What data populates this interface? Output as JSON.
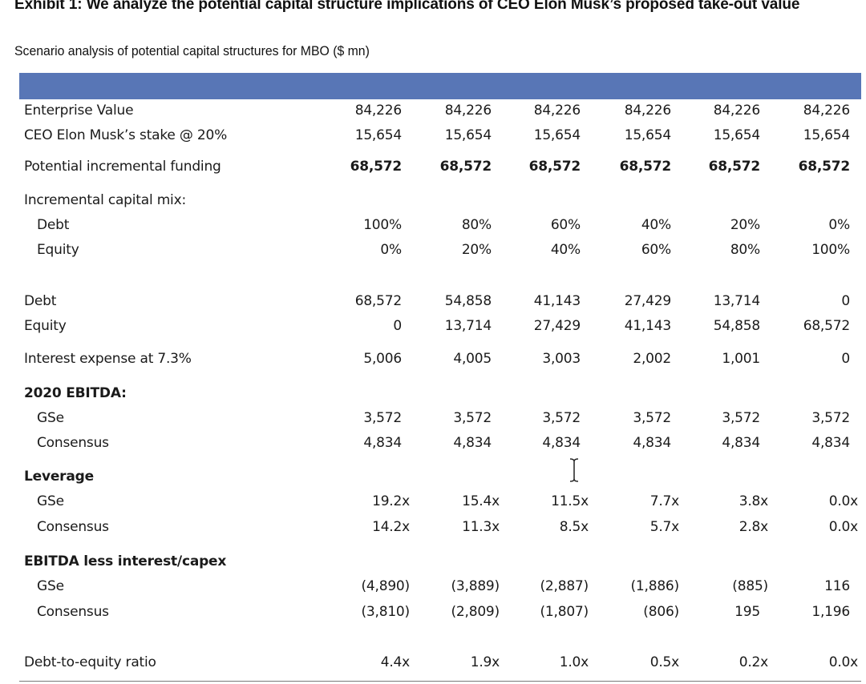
{
  "title": "Exhibit 1: We analyze the potential capital structure implications of CEO Elon Musk’s proposed take-out value",
  "subtitle": "Scenario analysis of potential capital structures for MBO ($ mn)",
  "rows": {
    "enterprise_value": {
      "label": "Enterprise Value",
      "values": [
        "84,226",
        "84,226",
        "84,226",
        "84,226",
        "84,226",
        "84,226"
      ]
    },
    "musk_stake": {
      "label": "CEO Elon Musk’s stake @ 20%",
      "values": [
        "15,654",
        "15,654",
        "15,654",
        "15,654",
        "15,654",
        "15,654"
      ]
    },
    "incremental_funding": {
      "label": "Potential incremental funding",
      "values": [
        "68,572",
        "68,572",
        "68,572",
        "68,572",
        "68,572",
        "68,572"
      ]
    },
    "capital_mix_header": {
      "label": "Incremental capital mix:"
    },
    "mix_debt": {
      "label": "Debt",
      "values": [
        "100%",
        "80%",
        "60%",
        "40%",
        "20%",
        "0%"
      ]
    },
    "mix_equity": {
      "label": "Equity",
      "values": [
        "0%",
        "20%",
        "40%",
        "60%",
        "80%",
        "100%"
      ]
    },
    "debt": {
      "label": "Debt",
      "values": [
        "68,572",
        "54,858",
        "41,143",
        "27,429",
        "13,714",
        "0"
      ]
    },
    "equity": {
      "label": "Equity",
      "values": [
        "0",
        "13,714",
        "27,429",
        "41,143",
        "54,858",
        "68,572"
      ]
    },
    "interest_expense": {
      "label": "Interest expense at 7.3%",
      "values": [
        "5,006",
        "4,005",
        "3,003",
        "2,002",
        "1,001",
        "0"
      ]
    },
    "ebitda_header": {
      "label": "2020 EBITDA:"
    },
    "ebitda_gse": {
      "label": "GSe",
      "values": [
        "3,572",
        "3,572",
        "3,572",
        "3,572",
        "3,572",
        "3,572"
      ]
    },
    "ebitda_consensus": {
      "label": "Consensus",
      "values": [
        "4,834",
        "4,834",
        "4,834",
        "4,834",
        "4,834",
        "4,834"
      ]
    },
    "leverage_header": {
      "label": "Leverage"
    },
    "leverage_gse": {
      "label": "GSe",
      "values": [
        "19.2x",
        "15.4x",
        "11.5x",
        "7.7x",
        "3.8x",
        "0.0x"
      ]
    },
    "leverage_consensus": {
      "label": "Consensus",
      "values": [
        "14.2x",
        "11.3x",
        "8.5x",
        "5.7x",
        "2.8x",
        "0.0x"
      ]
    },
    "ebitda_less_header": {
      "label": "EBITDA less interest/capex"
    },
    "ebitda_less_gse": {
      "label": "GSe",
      "values": [
        "(4,890)",
        "(3,889)",
        "(2,887)",
        "(1,886)",
        "(885)",
        "116"
      ]
    },
    "ebitda_less_consensus": {
      "label": "Consensus",
      "values": [
        "(3,810)",
        "(2,809)",
        "(1,807)",
        "(806)",
        "195",
        "1,196"
      ]
    },
    "debt_to_equity": {
      "label": "Debt-to-equity ratio",
      "values": [
        "4.4x",
        "1.9x",
        "1.0x",
        "0.5x",
        "0.2x",
        "0.0x"
      ]
    }
  },
  "colors": {
    "header_band": "#5876b6",
    "text": "#1a1a1a"
  },
  "icons": {
    "cursor": "text-cursor-icon"
  }
}
